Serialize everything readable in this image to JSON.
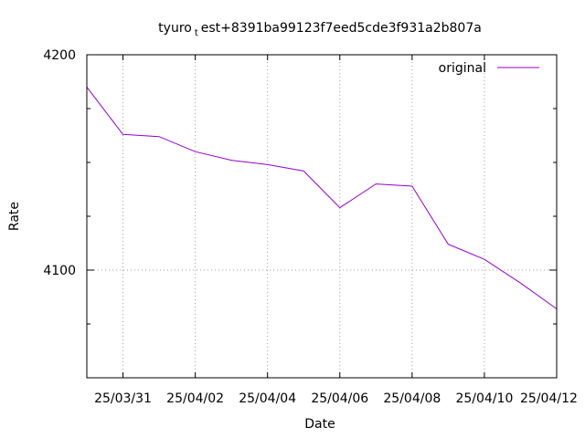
{
  "chart_data": {
    "type": "line",
    "title_main": "tyuro",
    "title_sub": "t",
    "title_rest": "est+8391ba99123f7eed5cde3f931a2b807a",
    "xlabel": "Date",
    "ylabel": "Rate",
    "ylim": [
      4050,
      4200
    ],
    "y_ticks": [
      "4100",
      "4200"
    ],
    "x_range": [
      "25/03/30",
      "25/04/12"
    ],
    "x_ticks": [
      {
        "x": "25/03/31",
        "label": "25/03/31"
      },
      {
        "x": "25/04/02",
        "label": "25/04/02"
      },
      {
        "x": "25/04/04",
        "label": "25/04/04"
      },
      {
        "x": "25/04/06",
        "label": "25/04/06"
      },
      {
        "x": "25/04/08",
        "label": "25/04/08"
      },
      {
        "x": "25/04/10",
        "label": "25/04/10"
      },
      {
        "x": "25/04/12",
        "label": "25/04/12"
      }
    ],
    "grid": true,
    "legend_position": "top-right",
    "series": [
      {
        "name": "original",
        "color": "#9400d3",
        "x": [
          "25/03/30",
          "25/03/31",
          "25/04/01",
          "25/04/02",
          "25/04/03",
          "25/04/04",
          "25/04/05",
          "25/04/06",
          "25/04/07",
          "25/04/08",
          "25/04/09",
          "25/04/10",
          "25/04/11",
          "25/04/12"
        ],
        "values": [
          4185,
          4163,
          4162,
          4155,
          4151,
          4149,
          4146,
          4129,
          4140,
          4139,
          4112,
          4105,
          4094,
          4082
        ]
      }
    ]
  }
}
